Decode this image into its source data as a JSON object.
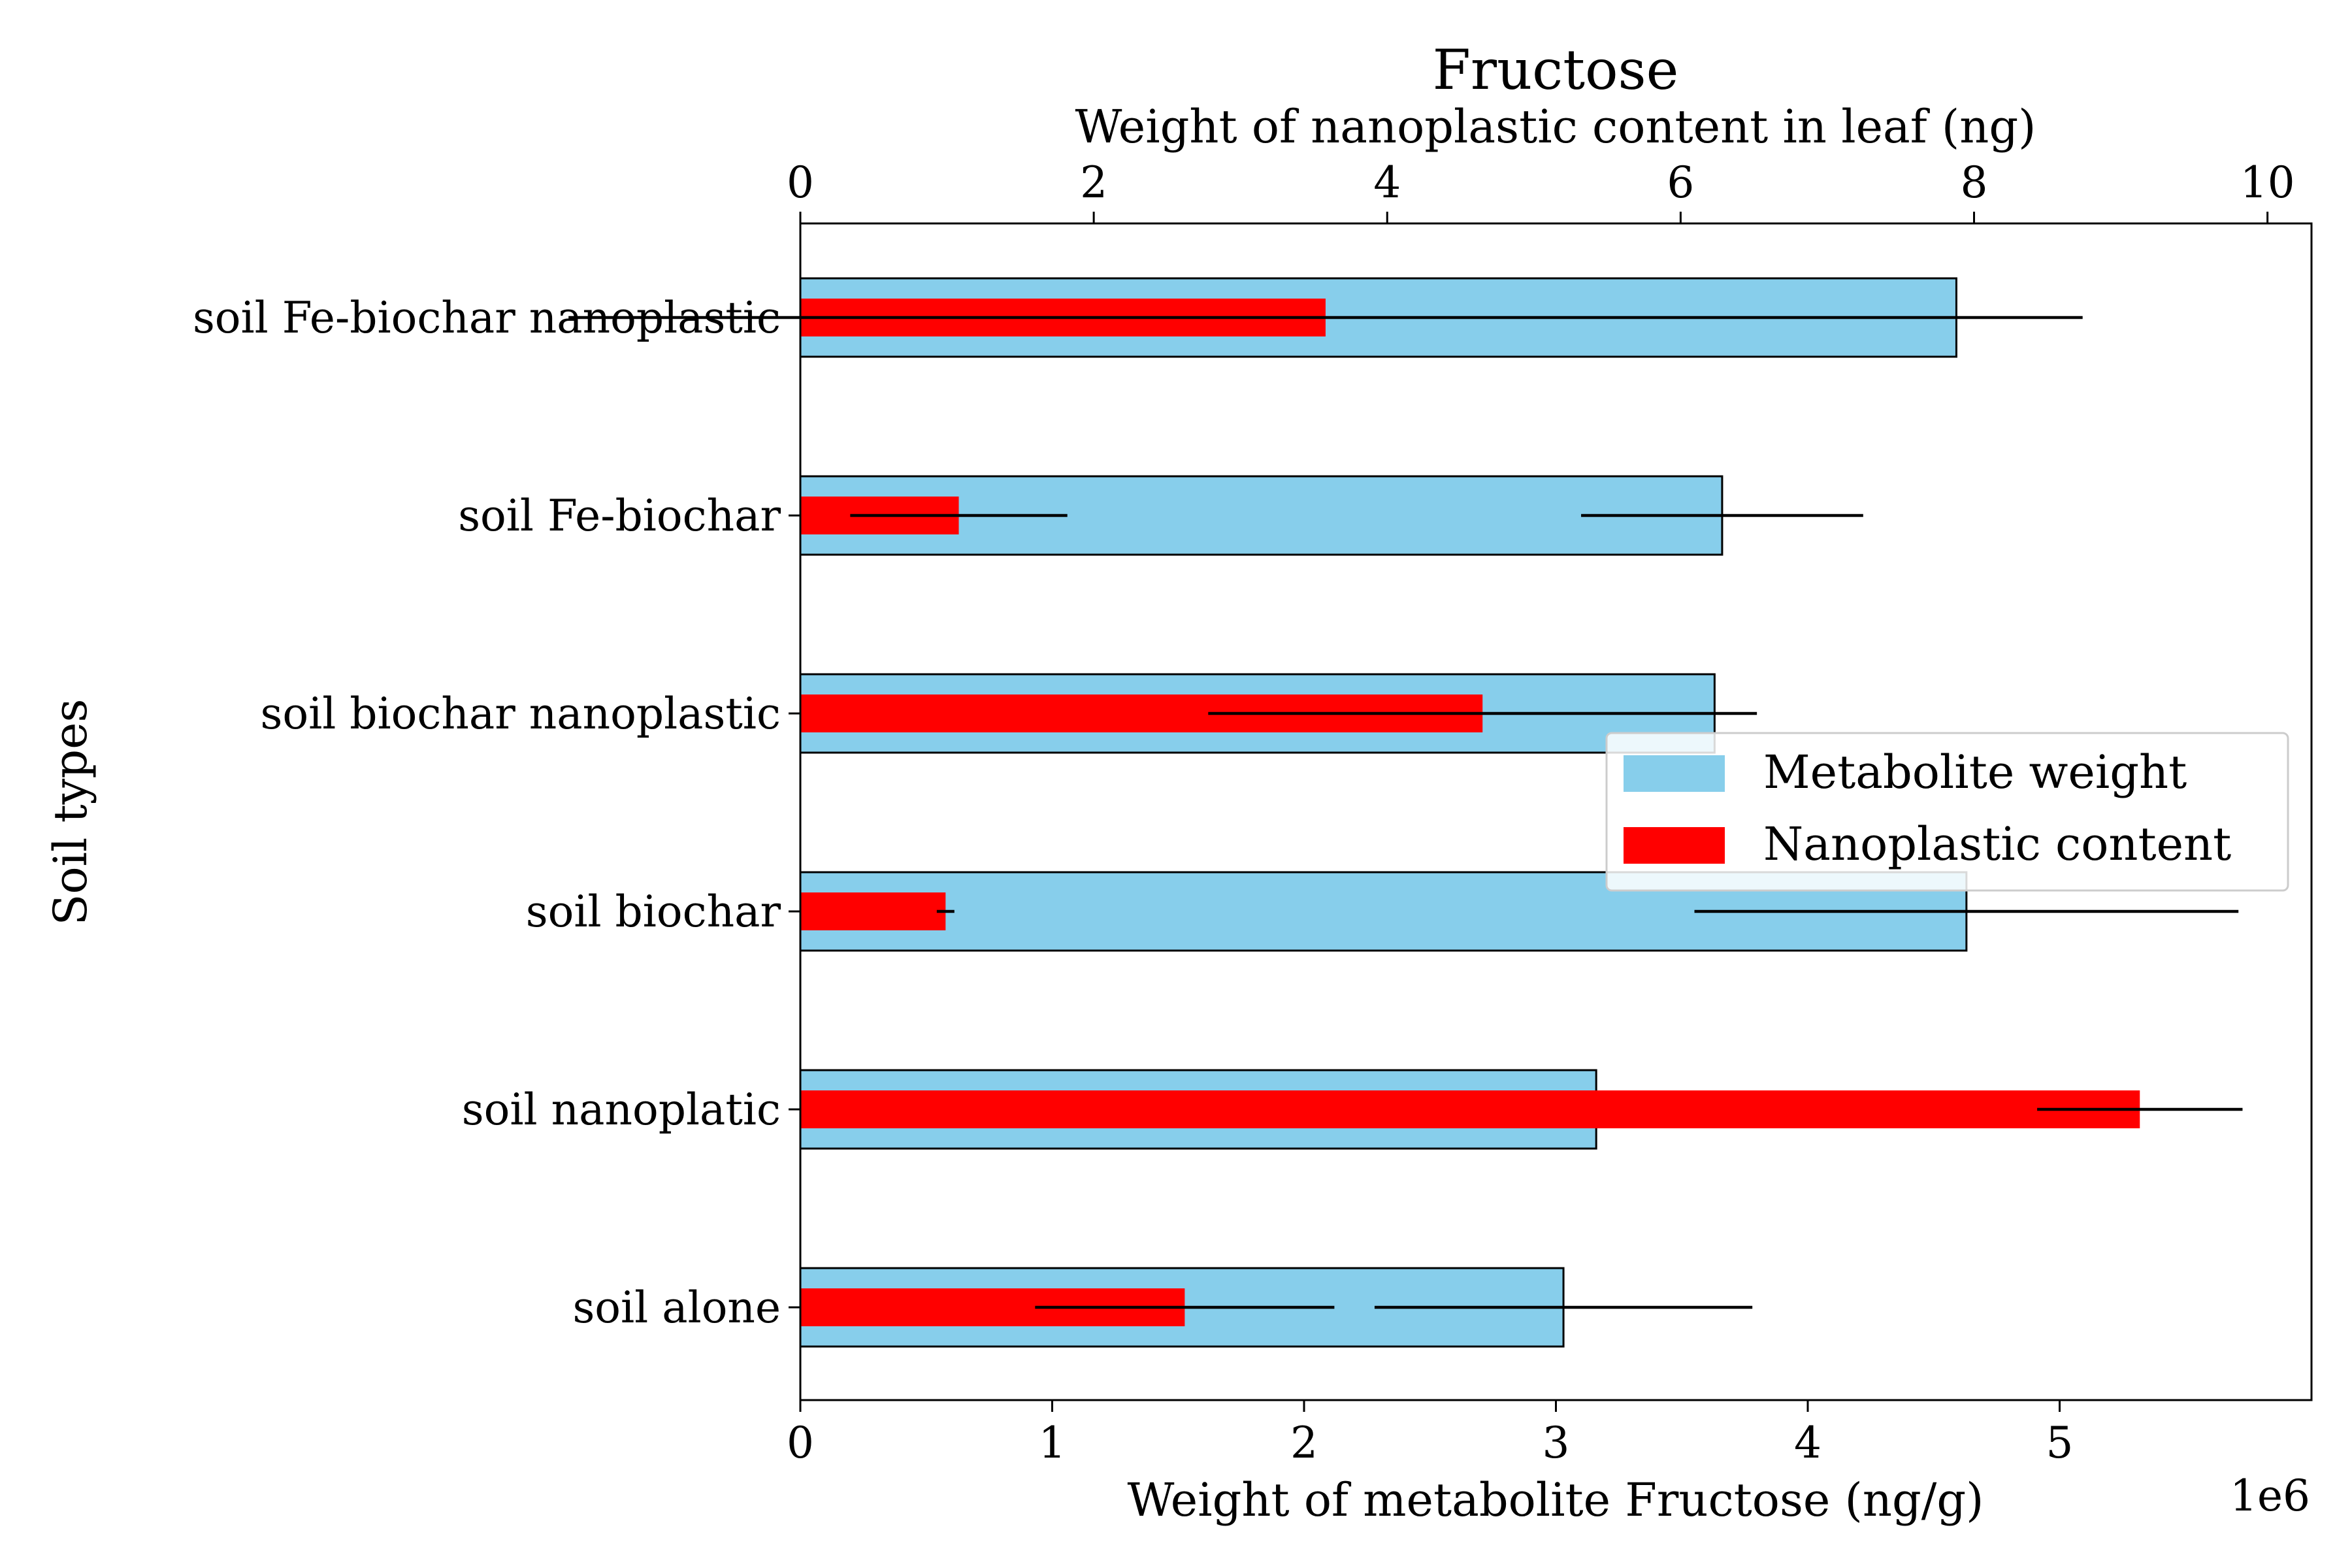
{
  "chart_data": {
    "type": "bar",
    "orientation": "horizontal",
    "title": "Fructose",
    "title_color": "#a52a2a",
    "ylabel": "Soil types",
    "xlabel_bottom": "Weight of metabolite Fructose (ng/g)",
    "xlabel_top": "Weight of nanoplastic content in leaf (ng)",
    "bottom_axis_multiplier": "1e6",
    "categories": [
      "soil alone",
      "soil nanoplatic",
      "soil biochar",
      "soil biochar nanoplastic",
      "soil Fe-biochar",
      "soil Fe-biochar nanoplastic"
    ],
    "bottom_axis": {
      "range": [
        0,
        6.0
      ],
      "ticks": [
        0,
        1,
        2,
        3,
        4,
        5
      ],
      "tick_labels": [
        "0",
        "1",
        "2",
        "3",
        "4",
        "5"
      ]
    },
    "top_axis": {
      "range": [
        0,
        10.3
      ],
      "ticks": [
        0,
        2,
        4,
        6,
        8,
        10
      ],
      "tick_labels": [
        "0",
        "2",
        "4",
        "6",
        "8",
        "10"
      ]
    },
    "series": [
      {
        "name": "Metabolite weight",
        "axis": "bottom",
        "color": "#87ceeb",
        "values": [
          3.03,
          3.16,
          4.63,
          3.63,
          3.66,
          4.59
        ],
        "errors": [
          0.75,
          0.0,
          1.08,
          0.0,
          0.56,
          0.0
        ]
      },
      {
        "name": "Nanoplastic content",
        "axis": "top",
        "color": "#ff0000",
        "values": [
          2.62,
          9.13,
          0.99,
          4.65,
          1.08,
          3.58
        ],
        "errors": [
          1.02,
          0.7,
          0.06,
          1.87,
          0.74,
          5.16
        ]
      }
    ],
    "legend": {
      "placement": "center-right"
    },
    "grid": false
  }
}
